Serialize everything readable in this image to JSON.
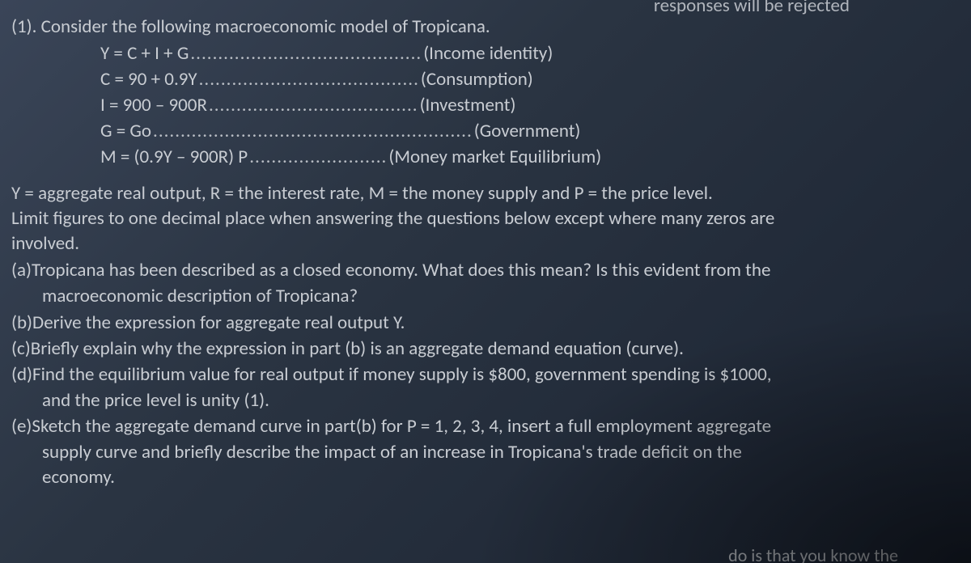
{
  "cutoff_top": "responses will be rejected",
  "q_number": "(1). ",
  "intro": "Consider the following macroeconomic model of Tropicana.",
  "equations": [
    {
      "lhs": "Y = C + I + G ",
      "dots": "..........................................",
      "label": "(Income identity)"
    },
    {
      "lhs": "C = 90 + 0.9Y",
      "dots": "........................................ ",
      "label": "(Consumption)"
    },
    {
      "lhs": "I = 900 – 900R",
      "dots": "...................................... ",
      "label": "(Investment)"
    },
    {
      "lhs": "G = Go ",
      "dots": "..........................................................",
      "label": "(Government)"
    },
    {
      "lhs": "M = (0.9Y – 900R) P",
      "dots": "......................... ",
      "label": "(Money market Equilibrium)"
    }
  ],
  "vardefs_line1": "Y = aggregate real output, R = the interest rate, M = the money supply and P = the price level.",
  "vardefs_line2": "Limit figures to one decimal place when answering the questions below except where many zeros are",
  "vardefs_line3": "involved.",
  "parts": {
    "a_tag": "(a)",
    "a_l1": "Tropicana has been described as a closed economy. What does this mean? Is this evident from the",
    "a_l2": "macroeconomic description of Tropicana?",
    "b_tag": "(b)",
    "b_l1": "Derive the expression for aggregate real output Y.",
    "c_tag": "(c)",
    "c_l1": "Briefly explain why the expression in part (b) is an aggregate demand equation (curve).",
    "d_tag": "(d)",
    "d_l1": "Find the equilibrium value for real output if money supply is $800, government spending is $1000,",
    "d_l2": "and the price level is unity (1).",
    "e_tag": "(e)",
    "e_l1": "Sketch the aggregate demand curve in part(b) for P = 1, 2, 3, 4, insert a full employment aggregate",
    "e_l2": "supply curve and briefly describe the impact of an increase in Tropicana's trade deficit on the",
    "e_l3": "economy."
  },
  "cutoff_bottom": "do is that you know the",
  "colors": {
    "text": "#c8ccd2",
    "bg_dark": "#1a2230",
    "bg_light": "#3a4558"
  },
  "font_size_pt": 17
}
